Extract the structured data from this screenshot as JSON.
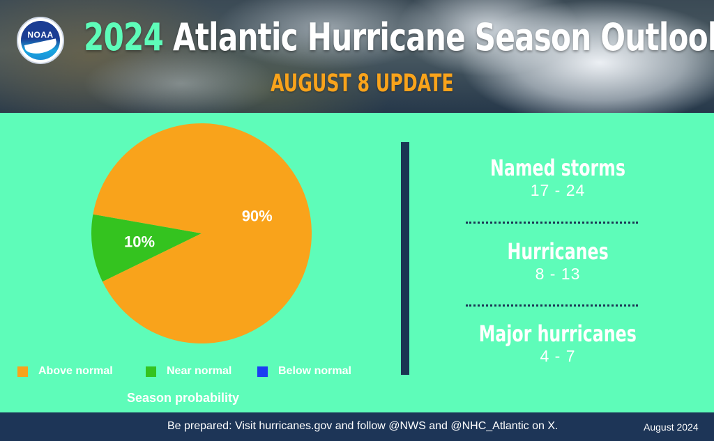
{
  "header": {
    "title_year": "2024",
    "title_rest": " Atlantic Hurricane Season Outlook",
    "subtitle": "AUGUST 8 UPDATE",
    "logo_text": "NOAA"
  },
  "chart_data": {
    "type": "pie",
    "title": "Season probability",
    "categories": [
      "Above normal",
      "Near normal",
      "Below normal"
    ],
    "values": [
      90,
      10,
      0
    ],
    "labels": [
      "90%",
      "10%",
      ""
    ],
    "colors": [
      "#f9a31b",
      "#34c31f",
      "#1b3df2"
    ],
    "legend_position": "bottom"
  },
  "stats": [
    {
      "label": "Named storms",
      "value": "17 - 24"
    },
    {
      "label": "Hurricanes",
      "value": "8 - 13"
    },
    {
      "label": "Major hurricanes",
      "value": "4 - 7"
    }
  ],
  "footer": {
    "message": "Be prepared: Visit hurricanes.gov and follow @NWS and @NHC_Atlantic on X.",
    "date": "August 2024"
  },
  "colors": {
    "background": "#5efcb9",
    "navy": "#1d3557",
    "accent_orange": "#f9a31b"
  }
}
